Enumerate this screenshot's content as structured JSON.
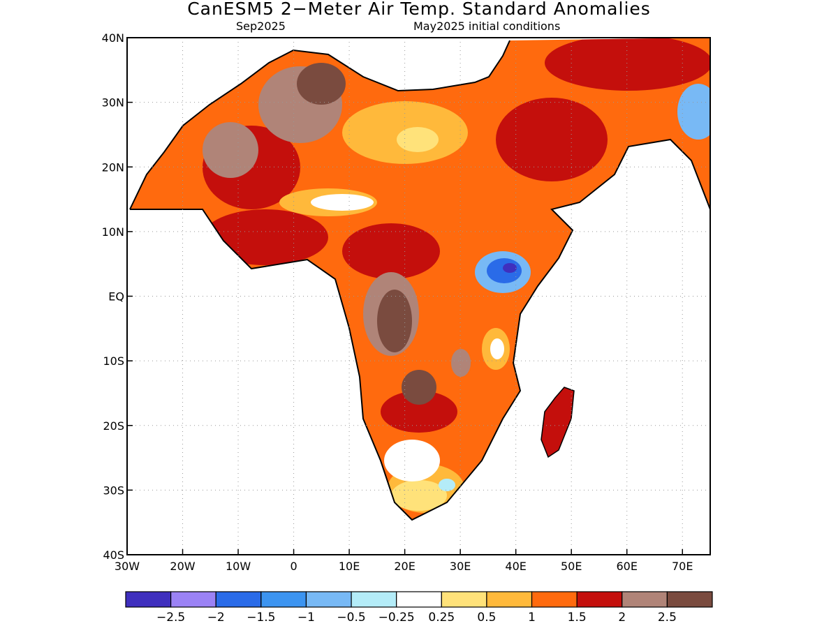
{
  "header": {
    "title": "CanESM5 2−Meter Air Temp. Standard Anomalies",
    "subtitle_left": "Sep2025",
    "subtitle_right": "May2025 initial conditions"
  },
  "axes": {
    "lon_ticks": [
      "30W",
      "20W",
      "10W",
      "0",
      "10E",
      "20E",
      "30E",
      "40E",
      "50E",
      "60E",
      "70E"
    ],
    "lat_ticks": [
      "40N",
      "30N",
      "20N",
      "10N",
      "EQ",
      "10S",
      "20S",
      "30S",
      "40S"
    ],
    "lon_range": [
      -30,
      75
    ],
    "lat_range": [
      -40,
      40
    ],
    "grid": "dotted"
  },
  "colorbar": {
    "labels": [
      "−2.5",
      "−2",
      "−1.5",
      "−1",
      "−0.5",
      "−0.25",
      "0.25",
      "0.5",
      "1",
      "1.5",
      "2",
      "2.5"
    ],
    "colors": [
      "#3f2fbe",
      "#9b82f5",
      "#2a6be8",
      "#3c94f0",
      "#78b9f5",
      "#b4ecf8",
      "#ffffff",
      "#ffe27a",
      "#ffb93b",
      "#ff6a0e",
      "#c40f0c",
      "#b08478",
      "#7a4b3f"
    ]
  },
  "map": {
    "region": "Africa",
    "variable": "2-meter air temperature standard anomaly",
    "palette": {
      "land_base": "#ff6a0e",
      "very_warm": "#c40f0c",
      "extreme_warm": "#b08478",
      "extreme_warm_max": "#7a4b3f",
      "mild_warm": "#ffb93b",
      "slight_warm": "#ffe27a",
      "neutral": "#ffffff",
      "cool": "#78b9f5",
      "cold": "#2a6be8",
      "very_cold": "#3f2fbe",
      "slight_cool": "#b4ecf8"
    }
  }
}
